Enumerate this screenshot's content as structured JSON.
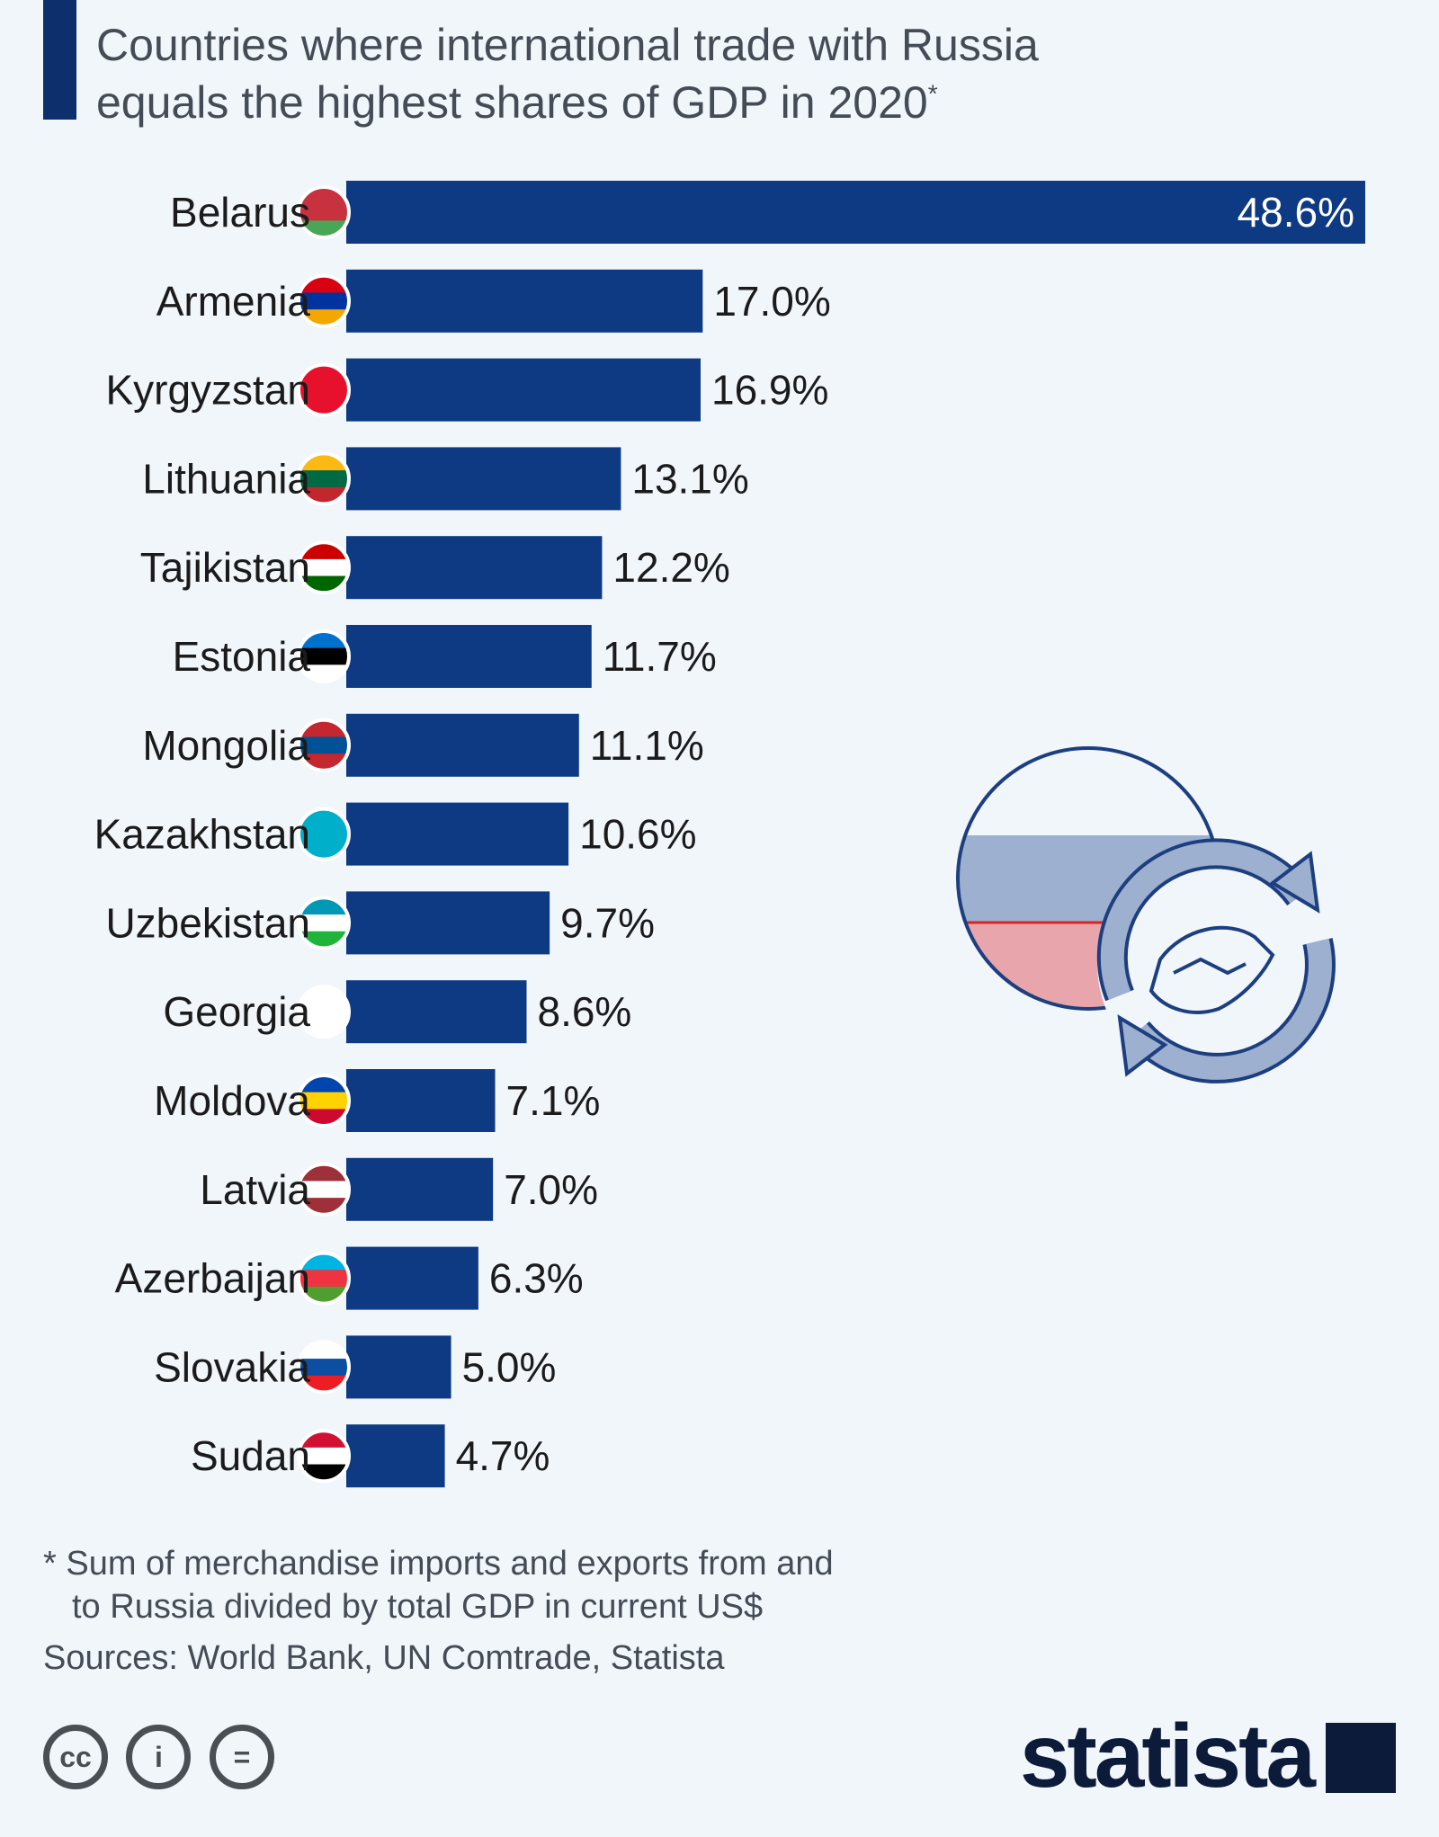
{
  "title": {
    "line1": "Countries where international trade with Russia",
    "line2": "equals the highest shares of GDP in 2020",
    "marker": "*"
  },
  "chart_data": {
    "type": "bar",
    "orientation": "horizontal",
    "categories": [
      "Belarus",
      "Armenia",
      "Kyrgyzstan",
      "Lithuania",
      "Tajikistan",
      "Estonia",
      "Mongolia",
      "Kazakhstan",
      "Uzbekistan",
      "Georgia",
      "Moldova",
      "Latvia",
      "Azerbaijan",
      "Slovakia",
      "Sudan"
    ],
    "values": [
      48.6,
      17.0,
      16.9,
      13.1,
      12.2,
      11.7,
      11.1,
      10.6,
      9.7,
      8.6,
      7.1,
      7.0,
      6.3,
      5.0,
      4.7
    ],
    "labels": [
      "48.6%",
      "17.0%",
      "16.9%",
      "13.1%",
      "12.2%",
      "11.7%",
      "11.1%",
      "10.6%",
      "9.7%",
      "8.6%",
      "7.1%",
      "7.0%",
      "6.3%",
      "5.0%",
      "4.7%"
    ],
    "unit": "%",
    "bar_color": "#0d3a82",
    "flags": [
      {
        "name": "belarus-flag",
        "stripes": [
          "#c8313e",
          "#c8313e",
          "#4aa657"
        ]
      },
      {
        "name": "armenia-flag",
        "stripes": [
          "#d90012",
          "#0033a0",
          "#f2a800"
        ]
      },
      {
        "name": "kyrgyzstan-flag",
        "stripes": [
          "#e8112d"
        ]
      },
      {
        "name": "lithuania-flag",
        "stripes": [
          "#fdb913",
          "#006a44",
          "#c1272d"
        ]
      },
      {
        "name": "tajikistan-flag",
        "stripes": [
          "#cc0000",
          "#ffffff",
          "#006600"
        ]
      },
      {
        "name": "estonia-flag",
        "stripes": [
          "#0072ce",
          "#000000",
          "#ffffff"
        ]
      },
      {
        "name": "mongolia-flag",
        "stripes": [
          "#c4272f",
          "#015197",
          "#c4272f"
        ]
      },
      {
        "name": "kazakhstan-flag",
        "stripes": [
          "#00afca"
        ]
      },
      {
        "name": "uzbekistan-flag",
        "stripes": [
          "#0099b5",
          "#ffffff",
          "#1eb53a"
        ]
      },
      {
        "name": "georgia-flag",
        "stripes": [
          "#ffffff"
        ]
      },
      {
        "name": "moldova-flag",
        "stripes": [
          "#0046ae",
          "#ffd200",
          "#cc092f"
        ]
      },
      {
        "name": "latvia-flag",
        "stripes": [
          "#9e3039",
          "#ffffff",
          "#9e3039"
        ]
      },
      {
        "name": "azerbaijan-flag",
        "stripes": [
          "#00b5e2",
          "#ef3340",
          "#509e2f"
        ]
      },
      {
        "name": "slovakia-flag",
        "stripes": [
          "#ffffff",
          "#0b4ea2",
          "#ee1c25"
        ]
      },
      {
        "name": "sudan-flag",
        "stripes": [
          "#d21034",
          "#ffffff",
          "#000000"
        ]
      }
    ]
  },
  "footnote": {
    "line1": "* Sum of merchandise imports and exports from and",
    "line2": "to Russia divided by total GDP in current US$"
  },
  "sources": "Sources: World Bank, UN Comtrade, Statista",
  "license_icons": [
    "creative-commons-icon",
    "attribution-icon",
    "no-derivatives-icon"
  ],
  "license_glyphs": [
    "cc",
    "i",
    "="
  ],
  "brand": "statista"
}
